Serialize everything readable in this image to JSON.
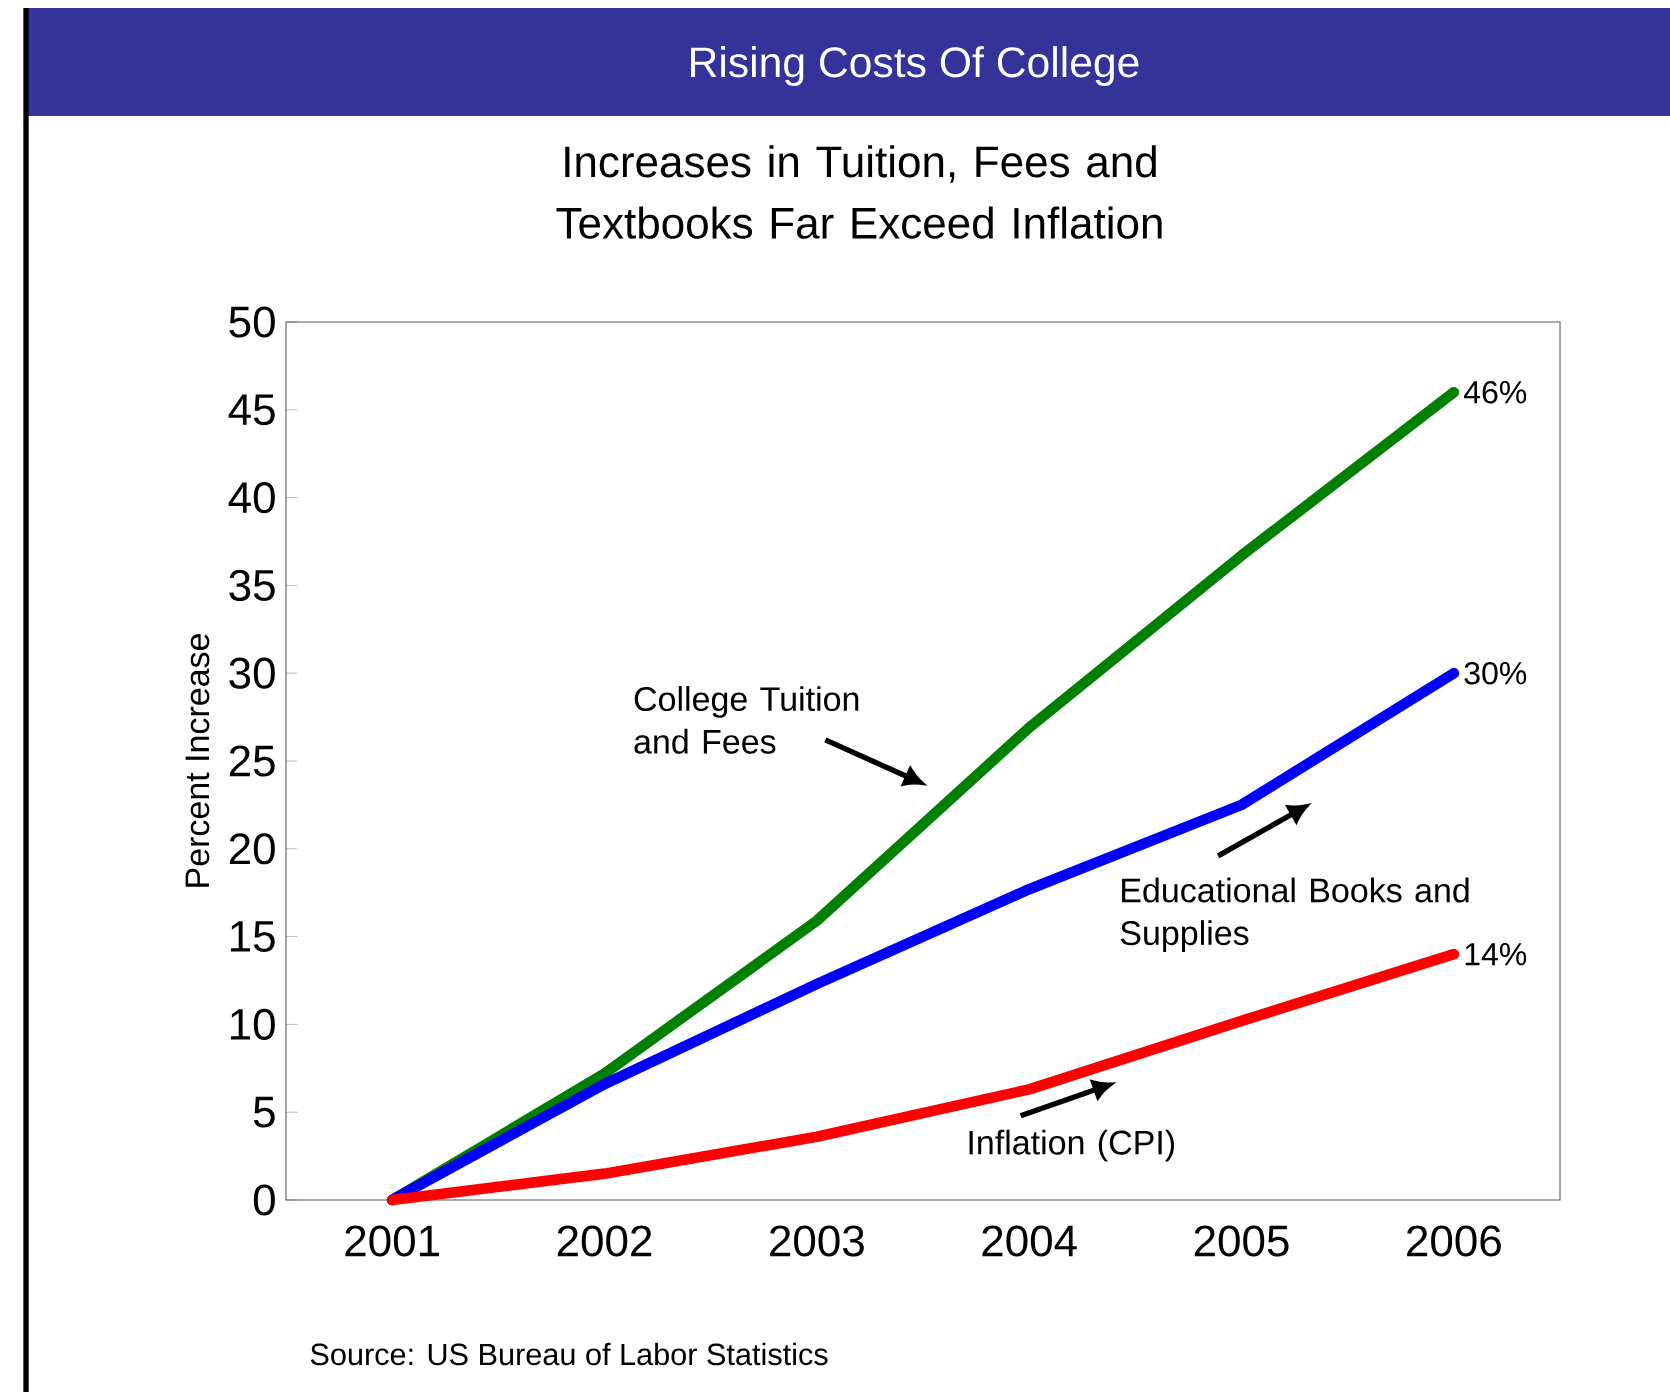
{
  "chart_data": {
    "type": "line",
    "title": "Rising Costs Of College",
    "subtitle": "Increases in Tuition, Fees and Textbooks Far Exceed Inflation",
    "ylabel": "Percent Increase",
    "categories": [
      "2001",
      "2002",
      "2003",
      "2004",
      "2005",
      "2006"
    ],
    "series": [
      {
        "name": "College Tuition and Fees",
        "color": "#008000",
        "values": [
          0,
          7.2,
          15.9,
          26.9,
          36.7,
          46
        ],
        "value_labels": [
          null,
          null,
          null,
          null,
          null,
          "46%"
        ]
      },
      {
        "name": "Educational Books and Supplies",
        "color": "#0000ff",
        "values": [
          0,
          6.6,
          12.3,
          17.7,
          22.5,
          30
        ],
        "value_labels": [
          null,
          null,
          null,
          null,
          null,
          "30%"
        ]
      },
      {
        "name": "Inflation (CPI)",
        "color": "#ff0000",
        "values": [
          0,
          1.5,
          3.6,
          6.3,
          10.2,
          14
        ],
        "value_labels": [
          null,
          null,
          null,
          null,
          null,
          "14%"
        ]
      }
    ],
    "ylim": [
      0,
      50
    ],
    "yticks": [
      0,
      5,
      10,
      15,
      20,
      25,
      30,
      35,
      40,
      45,
      50
    ],
    "annotations": [
      "Source: US Bureau of Labor Statistics"
    ]
  }
}
